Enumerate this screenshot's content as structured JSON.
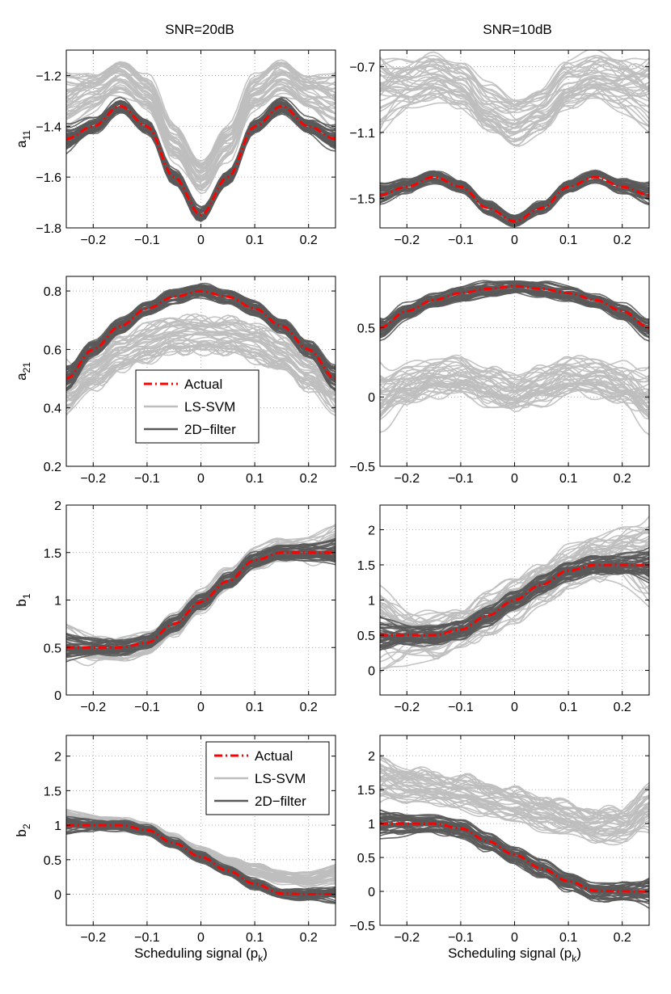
{
  "colors": {
    "actual": "#ff0000",
    "lssvm": "#bebebe",
    "filter": "#595959",
    "grid": "#9a9a9a"
  },
  "columns": [
    "SNR=20dB",
    "SNR=10dB"
  ],
  "legend": {
    "actual": "Actual",
    "lssvm": "LS-SVM",
    "filter": "2D−filter"
  },
  "chart_data": [
    {
      "type": "line",
      "id": "a11-20",
      "ylabel": "a",
      "ylabel_sub": "11",
      "xlim": [
        -0.25,
        0.25
      ],
      "ylim": [
        -1.8,
        -1.1
      ],
      "xticks": [
        -0.2,
        -0.1,
        0,
        0.1,
        0.2
      ],
      "xticklabels": [
        "−0.2",
        "−0.1",
        "0",
        "0.1",
        "0.2"
      ],
      "yticks": [
        -1.8,
        -1.6,
        -1.4,
        -1.2
      ],
      "yticklabels": [
        "−1.8",
        "−1.6",
        "−1.4",
        "−1.2"
      ],
      "grid": true,
      "legend": null,
      "xlabel": "",
      "series": [
        {
          "legend_key": "lssvm",
          "x": [
            -0.25,
            -0.2,
            -0.15,
            -0.1,
            -0.05,
            0,
            0.05,
            0.1,
            0.15,
            0.2,
            0.25
          ],
          "y": [
            -1.29,
            -1.26,
            -1.2,
            -1.27,
            -1.46,
            -1.6,
            -1.46,
            -1.27,
            -1.2,
            -1.26,
            -1.29
          ],
          "spread": 0.06
        },
        {
          "legend_key": "filter",
          "x": [
            -0.25,
            -0.2,
            -0.15,
            -0.1,
            -0.05,
            0,
            0.05,
            0.1,
            0.15,
            0.2,
            0.25
          ],
          "y": [
            -1.45,
            -1.4,
            -1.32,
            -1.4,
            -1.6,
            -1.75,
            -1.6,
            -1.4,
            -1.32,
            -1.4,
            -1.45
          ],
          "spread": 0.025
        },
        {
          "legend_key": "actual",
          "x": [
            -0.25,
            -0.2,
            -0.15,
            -0.1,
            -0.05,
            0,
            0.05,
            0.1,
            0.15,
            0.2,
            0.25
          ],
          "y": [
            -1.45,
            -1.4,
            -1.32,
            -1.4,
            -1.6,
            -1.75,
            -1.6,
            -1.4,
            -1.32,
            -1.4,
            -1.45
          ]
        }
      ]
    },
    {
      "type": "line",
      "id": "a11-10",
      "ylabel": "",
      "ylabel_sub": "",
      "xlim": [
        -0.25,
        0.25
      ],
      "ylim": [
        -1.68,
        -0.6
      ],
      "xticks": [
        -0.2,
        -0.1,
        0,
        0.1,
        0.2
      ],
      "xticklabels": [
        "−0.2",
        "−0.1",
        "0",
        "0.1",
        "0.2"
      ],
      "yticks": [
        -1.5,
        -1.1,
        -0.7
      ],
      "yticklabels": [
        "−1.5",
        "−1.1",
        "−0.7"
      ],
      "grid": true,
      "legend": null,
      "xlabel": "",
      "series": [
        {
          "legend_key": "lssvm",
          "x": [
            -0.25,
            -0.2,
            -0.15,
            -0.1,
            -0.05,
            0,
            0.05,
            0.1,
            0.15,
            0.2,
            0.25
          ],
          "y": [
            -0.82,
            -0.78,
            -0.75,
            -0.8,
            -0.95,
            -1.02,
            -0.95,
            -0.8,
            -0.75,
            -0.78,
            -0.82
          ],
          "spread": 0.13
        },
        {
          "legend_key": "filter",
          "x": [
            -0.25,
            -0.2,
            -0.15,
            -0.1,
            -0.05,
            0,
            0.05,
            0.1,
            0.15,
            0.2,
            0.25
          ],
          "y": [
            -1.48,
            -1.43,
            -1.37,
            -1.43,
            -1.56,
            -1.64,
            -1.56,
            -1.43,
            -1.37,
            -1.43,
            -1.48
          ],
          "spread": 0.035
        },
        {
          "legend_key": "actual",
          "x": [
            -0.25,
            -0.2,
            -0.15,
            -0.1,
            -0.05,
            0,
            0.05,
            0.1,
            0.15,
            0.2,
            0.25
          ],
          "y": [
            -1.48,
            -1.43,
            -1.37,
            -1.43,
            -1.56,
            -1.64,
            -1.56,
            -1.43,
            -1.37,
            -1.43,
            -1.48
          ]
        }
      ]
    },
    {
      "type": "line",
      "id": "a21-20",
      "ylabel": "a",
      "ylabel_sub": "21",
      "xlim": [
        -0.25,
        0.25
      ],
      "ylim": [
        0.2,
        0.85
      ],
      "xticks": [
        -0.2,
        -0.1,
        0,
        0.1,
        0.2
      ],
      "xticklabels": [
        "−0.2",
        "−0.1",
        "0",
        "0.1",
        "0.2"
      ],
      "yticks": [
        0.2,
        0.4,
        0.6,
        0.8
      ],
      "yticklabels": [
        "0.2",
        "0.4",
        "0.6",
        "0.8"
      ],
      "grid": true,
      "legend": "center-left",
      "xlabel": "",
      "series": [
        {
          "legend_key": "lssvm",
          "x": [
            -0.25,
            -0.2,
            -0.15,
            -0.1,
            -0.05,
            0,
            0.05,
            0.1,
            0.15,
            0.2,
            0.25
          ],
          "y": [
            0.45,
            0.52,
            0.58,
            0.62,
            0.645,
            0.65,
            0.645,
            0.62,
            0.58,
            0.52,
            0.45
          ],
          "spread": 0.055
        },
        {
          "legend_key": "filter",
          "x": [
            -0.25,
            -0.2,
            -0.15,
            -0.1,
            -0.05,
            0,
            0.05,
            0.1,
            0.15,
            0.2,
            0.25
          ],
          "y": [
            0.5,
            0.6,
            0.68,
            0.74,
            0.78,
            0.8,
            0.78,
            0.74,
            0.68,
            0.6,
            0.5
          ],
          "spread": 0.022
        },
        {
          "legend_key": "actual",
          "x": [
            -0.25,
            -0.2,
            -0.15,
            -0.1,
            -0.05,
            0,
            0.05,
            0.1,
            0.15,
            0.2,
            0.25
          ],
          "y": [
            0.5,
            0.6,
            0.68,
            0.74,
            0.78,
            0.8,
            0.78,
            0.74,
            0.68,
            0.6,
            0.5
          ]
        }
      ]
    },
    {
      "type": "line",
      "id": "a21-10",
      "ylabel": "",
      "ylabel_sub": "",
      "xlim": [
        -0.25,
        0.25
      ],
      "ylim": [
        -0.5,
        0.87
      ],
      "xticks": [
        -0.2,
        -0.1,
        0,
        0.1,
        0.2
      ],
      "xticklabels": [
        "−0.2",
        "−0.1",
        "0",
        "0.1",
        "0.2"
      ],
      "yticks": [
        -0.5,
        0,
        0.5
      ],
      "yticklabels": [
        "−0.5",
        "0",
        "0.5"
      ],
      "grid": true,
      "legend": null,
      "xlabel": "",
      "series": [
        {
          "legend_key": "lssvm",
          "x": [
            -0.25,
            -0.2,
            -0.15,
            -0.1,
            -0.05,
            0,
            0.05,
            0.1,
            0.15,
            0.2,
            0.25
          ],
          "y": [
            0.0,
            0.08,
            0.14,
            0.15,
            0.08,
            0.03,
            0.08,
            0.15,
            0.14,
            0.08,
            0.0
          ],
          "spread": 0.13
        },
        {
          "legend_key": "filter",
          "x": [
            -0.25,
            -0.2,
            -0.15,
            -0.1,
            -0.05,
            0,
            0.05,
            0.1,
            0.15,
            0.2,
            0.25
          ],
          "y": [
            0.5,
            0.62,
            0.7,
            0.75,
            0.78,
            0.8,
            0.78,
            0.75,
            0.7,
            0.62,
            0.5
          ],
          "spread": 0.045
        },
        {
          "legend_key": "actual",
          "x": [
            -0.25,
            -0.2,
            -0.15,
            -0.1,
            -0.05,
            0,
            0.05,
            0.1,
            0.15,
            0.2,
            0.25
          ],
          "y": [
            0.5,
            0.62,
            0.7,
            0.75,
            0.78,
            0.8,
            0.78,
            0.75,
            0.7,
            0.62,
            0.5
          ]
        }
      ]
    },
    {
      "type": "line",
      "id": "b1-20",
      "ylabel": "b",
      "ylabel_sub": "1",
      "xlim": [
        -0.25,
        0.25
      ],
      "ylim": [
        0,
        2
      ],
      "xticks": [
        -0.2,
        -0.1,
        0,
        0.1,
        0.2
      ],
      "xticklabels": [
        "−0.2",
        "−0.1",
        "0",
        "0.1",
        "0.2"
      ],
      "yticks": [
        0,
        0.5,
        1,
        1.5,
        2
      ],
      "yticklabels": [
        "0",
        "0.5",
        "1",
        "1.5",
        "2"
      ],
      "grid": true,
      "legend": null,
      "xlabel": "",
      "series": [
        {
          "legend_key": "lssvm",
          "x": [
            -0.25,
            -0.2,
            -0.15,
            -0.1,
            -0.05,
            0,
            0.05,
            0.1,
            0.15,
            0.2,
            0.25
          ],
          "y": [
            0.55,
            0.5,
            0.5,
            0.55,
            0.75,
            1.0,
            1.25,
            1.45,
            1.55,
            1.55,
            1.6
          ],
          "spread": 0.12
        },
        {
          "legend_key": "filter",
          "x": [
            -0.25,
            -0.2,
            -0.15,
            -0.1,
            -0.05,
            0,
            0.05,
            0.1,
            0.15,
            0.2,
            0.25
          ],
          "y": [
            0.5,
            0.5,
            0.5,
            0.55,
            0.75,
            0.98,
            1.2,
            1.42,
            1.5,
            1.5,
            1.5
          ],
          "spread": 0.07
        },
        {
          "legend_key": "actual",
          "x": [
            -0.25,
            -0.2,
            -0.15,
            -0.1,
            -0.05,
            0,
            0.05,
            0.1,
            0.15,
            0.2,
            0.25
          ],
          "y": [
            0.5,
            0.5,
            0.5,
            0.55,
            0.75,
            0.98,
            1.2,
            1.42,
            1.5,
            1.5,
            1.5
          ]
        }
      ]
    },
    {
      "type": "line",
      "id": "b1-10",
      "ylabel": "",
      "ylabel_sub": "",
      "xlim": [
        -0.25,
        0.25
      ],
      "ylim": [
        -0.35,
        2.35
      ],
      "xticks": [
        -0.2,
        -0.1,
        0,
        0.1,
        0.2
      ],
      "xticklabels": [
        "−0.2",
        "−0.1",
        "0",
        "0.1",
        "0.2"
      ],
      "yticks": [
        0,
        0.5,
        1,
        1.5,
        2
      ],
      "yticklabels": [
        "0",
        "0.5",
        "1",
        "1.5",
        "2"
      ],
      "grid": true,
      "legend": null,
      "xlabel": "",
      "series": [
        {
          "legend_key": "lssvm",
          "x": [
            -0.25,
            -0.2,
            -0.15,
            -0.1,
            -0.05,
            0,
            0.05,
            0.1,
            0.15,
            0.2,
            0.25
          ],
          "y": [
            0.6,
            0.5,
            0.5,
            0.6,
            0.8,
            1.0,
            1.25,
            1.45,
            1.6,
            1.65,
            1.6
          ],
          "spread": 0.3
        },
        {
          "legend_key": "filter",
          "x": [
            -0.25,
            -0.2,
            -0.15,
            -0.1,
            -0.05,
            0,
            0.05,
            0.1,
            0.15,
            0.2,
            0.25
          ],
          "y": [
            0.5,
            0.5,
            0.5,
            0.58,
            0.78,
            1.0,
            1.22,
            1.42,
            1.5,
            1.5,
            1.5
          ],
          "spread": 0.12
        },
        {
          "legend_key": "actual",
          "x": [
            -0.25,
            -0.2,
            -0.15,
            -0.1,
            -0.05,
            0,
            0.05,
            0.1,
            0.15,
            0.2,
            0.25
          ],
          "y": [
            0.5,
            0.5,
            0.5,
            0.58,
            0.78,
            1.0,
            1.22,
            1.42,
            1.5,
            1.5,
            1.5
          ]
        }
      ]
    },
    {
      "type": "line",
      "id": "b2-20",
      "ylabel": "b",
      "ylabel_sub": "2",
      "xlim": [
        -0.25,
        0.25
      ],
      "ylim": [
        -0.45,
        2.3
      ],
      "xticks": [
        -0.2,
        -0.1,
        0,
        0.1,
        0.2
      ],
      "xticklabels": [
        "−0.2",
        "−0.1",
        "0",
        "0.1",
        "0.2"
      ],
      "yticks": [
        0,
        0.5,
        1,
        1.5,
        2
      ],
      "yticklabels": [
        "0",
        "0.5",
        "1",
        "1.5",
        "2"
      ],
      "grid": true,
      "legend": "top-right",
      "xlabel": "Scheduling signal (p",
      "xlabel_sub": "k",
      "xlabel_end": ")",
      "series": [
        {
          "legend_key": "lssvm",
          "x": [
            -0.25,
            -0.2,
            -0.15,
            -0.1,
            -0.05,
            0,
            0.05,
            0.1,
            0.15,
            0.2,
            0.25
          ],
          "y": [
            1.1,
            1.05,
            1.02,
            0.95,
            0.78,
            0.6,
            0.45,
            0.35,
            0.25,
            0.22,
            0.3
          ],
          "spread": 0.08
        },
        {
          "legend_key": "filter",
          "x": [
            -0.25,
            -0.2,
            -0.15,
            -0.1,
            -0.05,
            0,
            0.05,
            0.1,
            0.15,
            0.2,
            0.25
          ],
          "y": [
            1.0,
            1.0,
            1.0,
            0.93,
            0.74,
            0.54,
            0.34,
            0.15,
            0.01,
            0.0,
            0.0
          ],
          "spread": 0.07
        },
        {
          "legend_key": "actual",
          "x": [
            -0.25,
            -0.2,
            -0.15,
            -0.1,
            -0.05,
            0,
            0.05,
            0.1,
            0.15,
            0.2,
            0.25
          ],
          "y": [
            1.0,
            1.0,
            1.0,
            0.93,
            0.74,
            0.54,
            0.34,
            0.15,
            0.01,
            0.0,
            0.0
          ]
        }
      ]
    },
    {
      "type": "line",
      "id": "b2-10",
      "ylabel": "",
      "ylabel_sub": "",
      "xlim": [
        -0.25,
        0.25
      ],
      "ylim": [
        -0.5,
        2.3
      ],
      "xticks": [
        -0.2,
        -0.1,
        0,
        0.1,
        0.2
      ],
      "xticklabels": [
        "−0.2",
        "−0.1",
        "0",
        "0.1",
        "0.2"
      ],
      "yticks": [
        -0.5,
        0,
        0.5,
        1,
        1.5,
        2
      ],
      "yticklabels": [
        "−0.5",
        "0",
        "0.5",
        "1",
        "1.5",
        "2"
      ],
      "grid": true,
      "legend": null,
      "xlabel": "Scheduling signal (p",
      "xlabel_sub": "k",
      "xlabel_end": ")",
      "series": [
        {
          "legend_key": "lssvm",
          "x": [
            -0.25,
            -0.2,
            -0.15,
            -0.1,
            -0.05,
            0,
            0.05,
            0.1,
            0.15,
            0.2,
            0.25
          ],
          "y": [
            1.6,
            1.55,
            1.5,
            1.45,
            1.35,
            1.25,
            1.15,
            1.05,
            0.95,
            0.95,
            1.2
          ],
          "spread": 0.22
        },
        {
          "legend_key": "filter",
          "x": [
            -0.25,
            -0.2,
            -0.15,
            -0.1,
            -0.05,
            0,
            0.05,
            0.1,
            0.15,
            0.2,
            0.25
          ],
          "y": [
            1.0,
            1.0,
            1.0,
            0.93,
            0.74,
            0.54,
            0.34,
            0.15,
            0.01,
            0.0,
            0.0
          ],
          "spread": 0.12
        },
        {
          "legend_key": "actual",
          "x": [
            -0.25,
            -0.2,
            -0.15,
            -0.1,
            -0.05,
            0,
            0.05,
            0.1,
            0.15,
            0.2,
            0.25
          ],
          "y": [
            1.0,
            1.0,
            1.0,
            0.93,
            0.74,
            0.54,
            0.34,
            0.15,
            0.01,
            0.0,
            0.0
          ]
        }
      ]
    }
  ]
}
